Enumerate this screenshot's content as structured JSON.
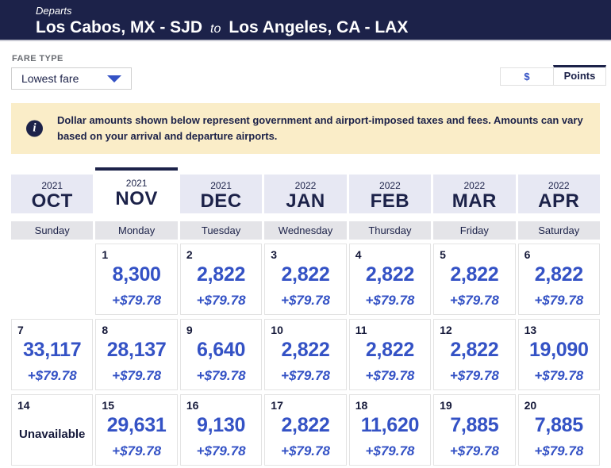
{
  "header": {
    "departs_label": "Departs",
    "origin": "Los Cabos, MX - SJD",
    "to_label": "to",
    "destination": "Los Angeles, CA - LAX"
  },
  "fare_type": {
    "label": "FARE TYPE",
    "selected_option": "Lowest fare"
  },
  "currency_toggle": {
    "dollar_label": "$",
    "points_label": "Points",
    "selected": "Points"
  },
  "notice": {
    "text": "Dollar amounts shown below represent government and airport-imposed taxes and fees. Amounts can vary based on your arrival and departure airports."
  },
  "month_tabs": [
    {
      "year": "2021",
      "month": "OCT",
      "selected": false
    },
    {
      "year": "2021",
      "month": "NOV",
      "selected": true
    },
    {
      "year": "2021",
      "month": "DEC",
      "selected": false
    },
    {
      "year": "2022",
      "month": "JAN",
      "selected": false
    },
    {
      "year": "2022",
      "month": "FEB",
      "selected": false
    },
    {
      "year": "2022",
      "month": "MAR",
      "selected": false
    },
    {
      "year": "2022",
      "month": "APR",
      "selected": false
    }
  ],
  "weekdays": [
    "Sunday",
    "Monday",
    "Tuesday",
    "Wednesday",
    "Thursday",
    "Friday",
    "Saturday"
  ],
  "calendar": {
    "unavailable_label": "Unavailable",
    "weeks": [
      [
        null,
        {
          "day": "1",
          "points": "8,300",
          "taxes": "+$79.78"
        },
        {
          "day": "2",
          "points": "2,822",
          "taxes": "+$79.78"
        },
        {
          "day": "3",
          "points": "2,822",
          "taxes": "+$79.78"
        },
        {
          "day": "4",
          "points": "2,822",
          "taxes": "+$79.78"
        },
        {
          "day": "5",
          "points": "2,822",
          "taxes": "+$79.78"
        },
        {
          "day": "6",
          "points": "2,822",
          "taxes": "+$79.78"
        }
      ],
      [
        {
          "day": "7",
          "points": "33,117",
          "taxes": "+$79.78"
        },
        {
          "day": "8",
          "points": "28,137",
          "taxes": "+$79.78"
        },
        {
          "day": "9",
          "points": "6,640",
          "taxes": "+$79.78"
        },
        {
          "day": "10",
          "points": "2,822",
          "taxes": "+$79.78"
        },
        {
          "day": "11",
          "points": "2,822",
          "taxes": "+$79.78"
        },
        {
          "day": "12",
          "points": "2,822",
          "taxes": "+$79.78"
        },
        {
          "day": "13",
          "points": "19,090",
          "taxes": "+$79.78"
        }
      ],
      [
        {
          "day": "14",
          "unavailable": true
        },
        {
          "day": "15",
          "points": "29,631",
          "taxes": "+$79.78"
        },
        {
          "day": "16",
          "points": "9,130",
          "taxes": "+$79.78"
        },
        {
          "day": "17",
          "points": "2,822",
          "taxes": "+$79.78"
        },
        {
          "day": "18",
          "points": "11,620",
          "taxes": "+$79.78"
        },
        {
          "day": "19",
          "points": "7,885",
          "taxes": "+$79.78"
        },
        {
          "day": "20",
          "points": "7,885",
          "taxes": "+$79.78"
        }
      ]
    ]
  },
  "colors": {
    "navy": "#1c2249",
    "blue": "#3452c5",
    "banner_bg": "#faedc8",
    "tab_bg": "#e7e8f3",
    "weekday_bg": "#e4e4e8",
    "cell_border": "#e3e3e3",
    "divider": "#c9cad4"
  }
}
